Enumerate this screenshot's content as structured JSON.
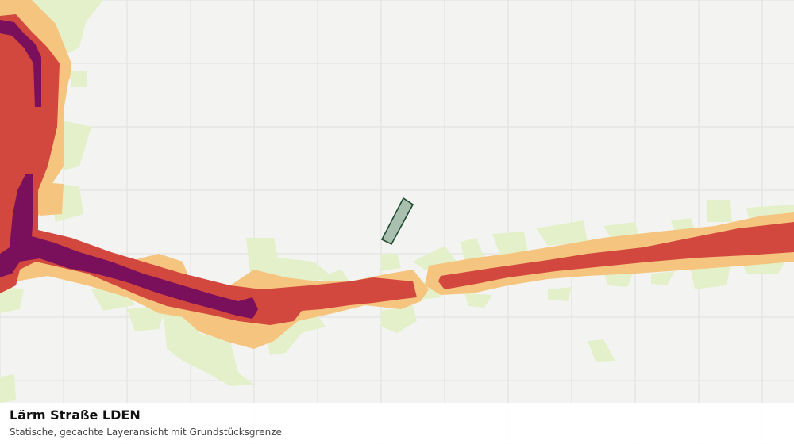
{
  "map": {
    "title": "Lärm Straße LDEN",
    "subtitle": "Statische, gecachte Layeransicht mit Grundstücksgrenze",
    "colors": {
      "background": "#f3f4f2",
      "grid": "#dfe1de",
      "band_lowest": "#e4f0c9",
      "band_low": "#f5c47f",
      "band_high": "#d2473e",
      "band_highest": "#7a0f5b",
      "parcel_fill": "#a9bfb0",
      "parcel_stroke": "#1d4a2b"
    },
    "layers": [
      "noise-bands",
      "parcel-boundary"
    ]
  }
}
